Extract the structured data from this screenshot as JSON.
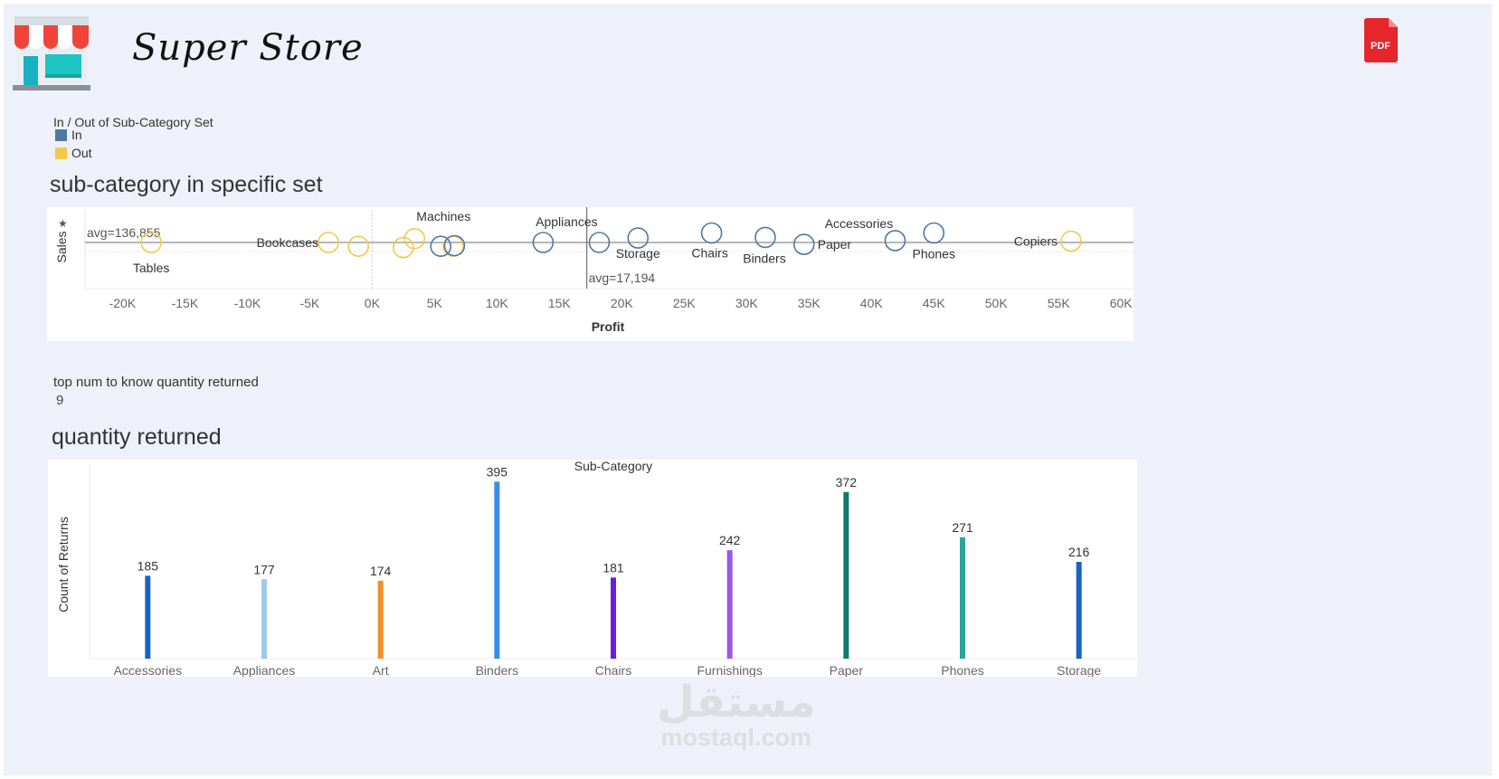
{
  "header": {
    "title": "Super Store",
    "logo_icon": "store-icon",
    "pdf_icon": "pdf-icon",
    "pdf_label": "PDF"
  },
  "legend": {
    "title": "In / Out of Sub-Category Set",
    "items": [
      {
        "label": "In",
        "color": "#4e79a7"
      },
      {
        "label": "Out",
        "color": "#f2c94c"
      }
    ]
  },
  "scatter": {
    "title": "sub-category in specific set",
    "chart_data": {
      "type": "scatter",
      "xlabel": "Profit",
      "ylabel": "Sales",
      "xlim": [
        -23000,
        61000
      ],
      "x_ticks": [
        "-20K",
        "-15K",
        "-10K",
        "-5K",
        "0K",
        "5K",
        "10K",
        "15K",
        "20K",
        "25K",
        "30K",
        "35K",
        "40K",
        "45K",
        "50K",
        "55K",
        "60K"
      ],
      "x_tick_values": [
        -20000,
        -15000,
        -10000,
        -5000,
        0,
        5000,
        10000,
        15000,
        20000,
        25000,
        30000,
        35000,
        40000,
        45000,
        50000,
        55000,
        60000
      ],
      "ref_lines": [
        {
          "axis": "y",
          "label": "avg=136,855"
        },
        {
          "axis": "x",
          "value": 17194,
          "label": "avg=17,194"
        }
      ],
      "points": [
        {
          "label": "Tables",
          "x": -17700,
          "y": 0,
          "set": "Out"
        },
        {
          "label": "Bookcases",
          "x": -3500,
          "y": 0,
          "set": "Out"
        },
        {
          "label": "",
          "x": -1100,
          "y": -0.3,
          "set": "Out"
        },
        {
          "label": "",
          "x": 2500,
          "y": -0.4,
          "set": "Out"
        },
        {
          "label": "Machines",
          "x": 3400,
          "y": 0.3,
          "set": "Out"
        },
        {
          "label": "",
          "x": 6500,
          "y": -0.3,
          "set": "Out"
        },
        {
          "label": "",
          "x": 5500,
          "y": -0.3,
          "set": "In"
        },
        {
          "label": "",
          "x": 6600,
          "y": -0.25,
          "set": "In"
        },
        {
          "label": "Appliances",
          "x": 13700,
          "y": 0,
          "set": "In"
        },
        {
          "label": "",
          "x": 18200,
          "y": 0,
          "set": "In"
        },
        {
          "label": "Storage",
          "x": 21300,
          "y": 0.35,
          "set": "In"
        },
        {
          "label": "Chairs",
          "x": 27200,
          "y": 0.75,
          "set": "In"
        },
        {
          "label": "Binders",
          "x": 31500,
          "y": 0.4,
          "set": "In"
        },
        {
          "label": "Paper",
          "x": 34600,
          "y": -0.15,
          "set": "In"
        },
        {
          "label": "Accessories",
          "x": 41900,
          "y": 0.15,
          "set": "In"
        },
        {
          "label": "Phones",
          "x": 45000,
          "y": 0.75,
          "set": "In"
        },
        {
          "label": "Copiers",
          "x": 56000,
          "y": 0.1,
          "set": "Out"
        }
      ]
    }
  },
  "parameter": {
    "label": "top num to know quantity returned",
    "value": "9"
  },
  "bars": {
    "title": "quantity returned",
    "chart_data": {
      "type": "bar",
      "title": "Sub-Category",
      "xlabel": "",
      "ylabel": "Count of Returns",
      "ylim": [
        0,
        420
      ],
      "categories": [
        "Accessories",
        "Appliances",
        "Art",
        "Binders",
        "Chairs",
        "Furnishings",
        "Paper",
        "Phones",
        "Storage"
      ],
      "values": [
        185,
        177,
        174,
        395,
        181,
        242,
        372,
        271,
        216
      ],
      "colors": [
        "#1565c0",
        "#9ecae9",
        "#f28e2b",
        "#3a8eea",
        "#6a1fd8",
        "#9b59e6",
        "#0f7a6e",
        "#2ba69a",
        "#1565c0"
      ]
    }
  },
  "watermark": {
    "arabic": "مستقل",
    "latin": "mostaql.com"
  }
}
